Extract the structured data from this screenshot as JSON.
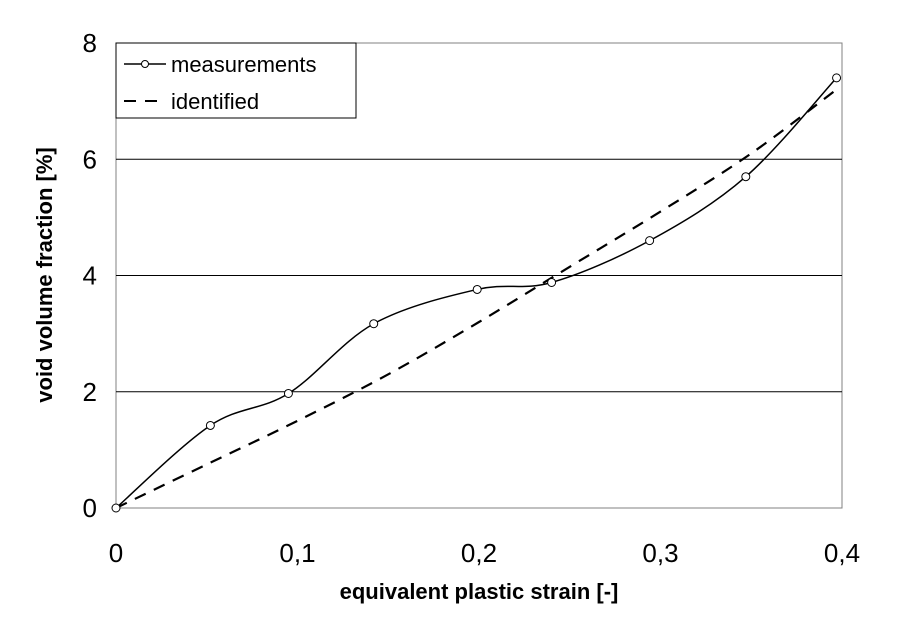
{
  "chart_data": {
    "type": "line",
    "title": "",
    "xlabel": "equivalent plastic strain [-]",
    "ylabel": "void volume fraction [%]",
    "xlim": [
      0,
      0.4
    ],
    "ylim": [
      0,
      8
    ],
    "x_ticks": [
      0,
      0.1,
      0.2,
      0.3,
      0.4
    ],
    "x_tick_labels": [
      "0",
      "0,1",
      "0,2",
      "0,3",
      "0,4"
    ],
    "y_ticks": [
      0,
      2,
      4,
      6,
      8
    ],
    "y_tick_labels": [
      "0",
      "2",
      "4",
      "6",
      "8"
    ],
    "grid": "horizontal",
    "legend_position": "top-left",
    "series": [
      {
        "name": "measurements",
        "style": "solid-circle-markers",
        "color": "#000000",
        "x": [
          0.0,
          0.052,
          0.095,
          0.142,
          0.199,
          0.24,
          0.294,
          0.347,
          0.397
        ],
        "y": [
          0.0,
          1.42,
          1.97,
          3.17,
          3.76,
          3.88,
          4.6,
          5.7,
          7.4
        ]
      },
      {
        "name": "identified",
        "style": "dashed",
        "color": "#000000",
        "x": [
          0.0,
          0.05,
          0.1,
          0.15,
          0.2,
          0.25,
          0.3,
          0.35,
          0.397
        ],
        "y": [
          0.0,
          0.75,
          1.5,
          2.3,
          3.2,
          4.15,
          5.1,
          6.1,
          7.2
        ]
      }
    ]
  }
}
